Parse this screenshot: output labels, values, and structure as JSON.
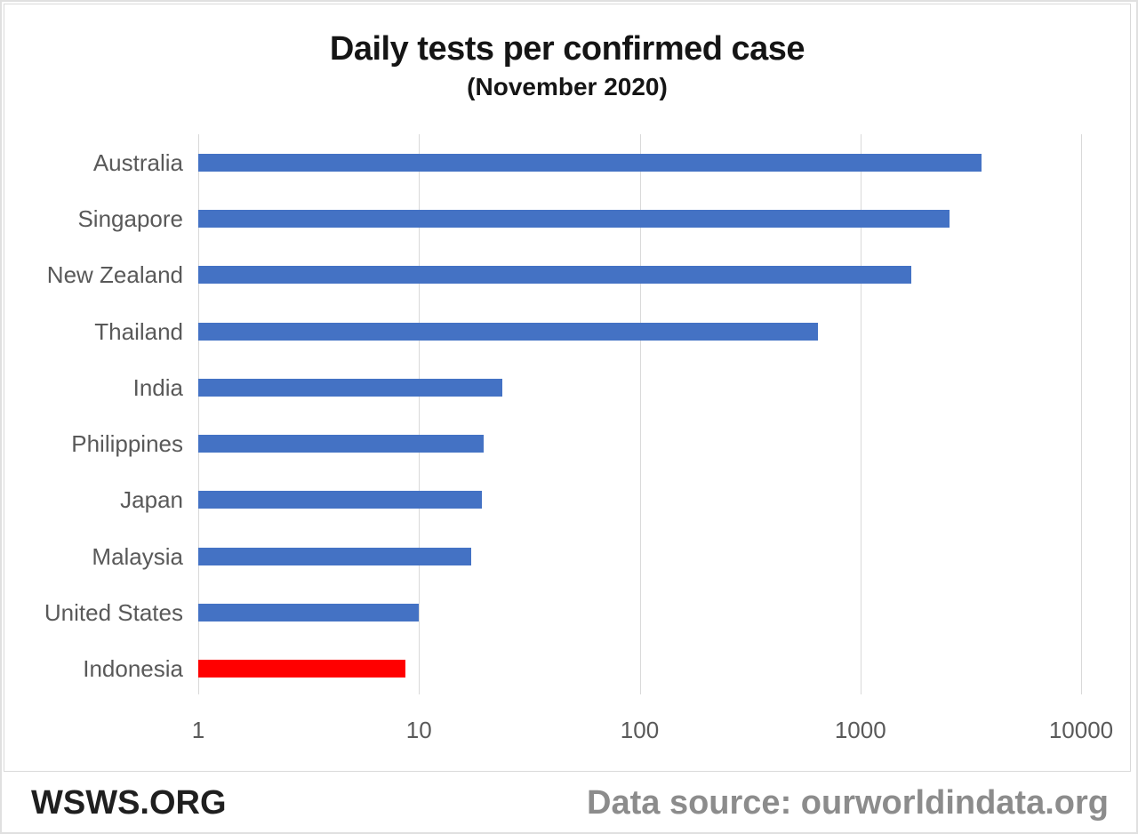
{
  "chart_data": {
    "type": "bar",
    "orientation": "horizontal",
    "x_scale": "log",
    "title": "Daily tests per confirmed case",
    "subtitle": "(November 2020)",
    "categories": [
      "Australia",
      "Singapore",
      "New Zealand",
      "Thailand",
      "India",
      "Philippines",
      "Japan",
      "Malaysia",
      "United States",
      "Indonesia"
    ],
    "values": [
      3550,
      2540,
      1700,
      640,
      23.8,
      19.7,
      19.2,
      17.2,
      10,
      8.7
    ],
    "x_ticks": [
      "1",
      "10",
      "100",
      "1000",
      "10000"
    ],
    "xlim": [
      1,
      10000
    ],
    "xlabel": "",
    "ylabel": "",
    "grid": "vertical",
    "legend": "none",
    "bar_color": "#4472C4",
    "highlight_category": "Indonesia",
    "highlight_color": "#FF0000",
    "gridline_color": "#d9d9d9",
    "label_color": "#595959"
  },
  "footer": {
    "brand": "WSWS.ORG",
    "source": "Data source: ourworldindata.org"
  }
}
